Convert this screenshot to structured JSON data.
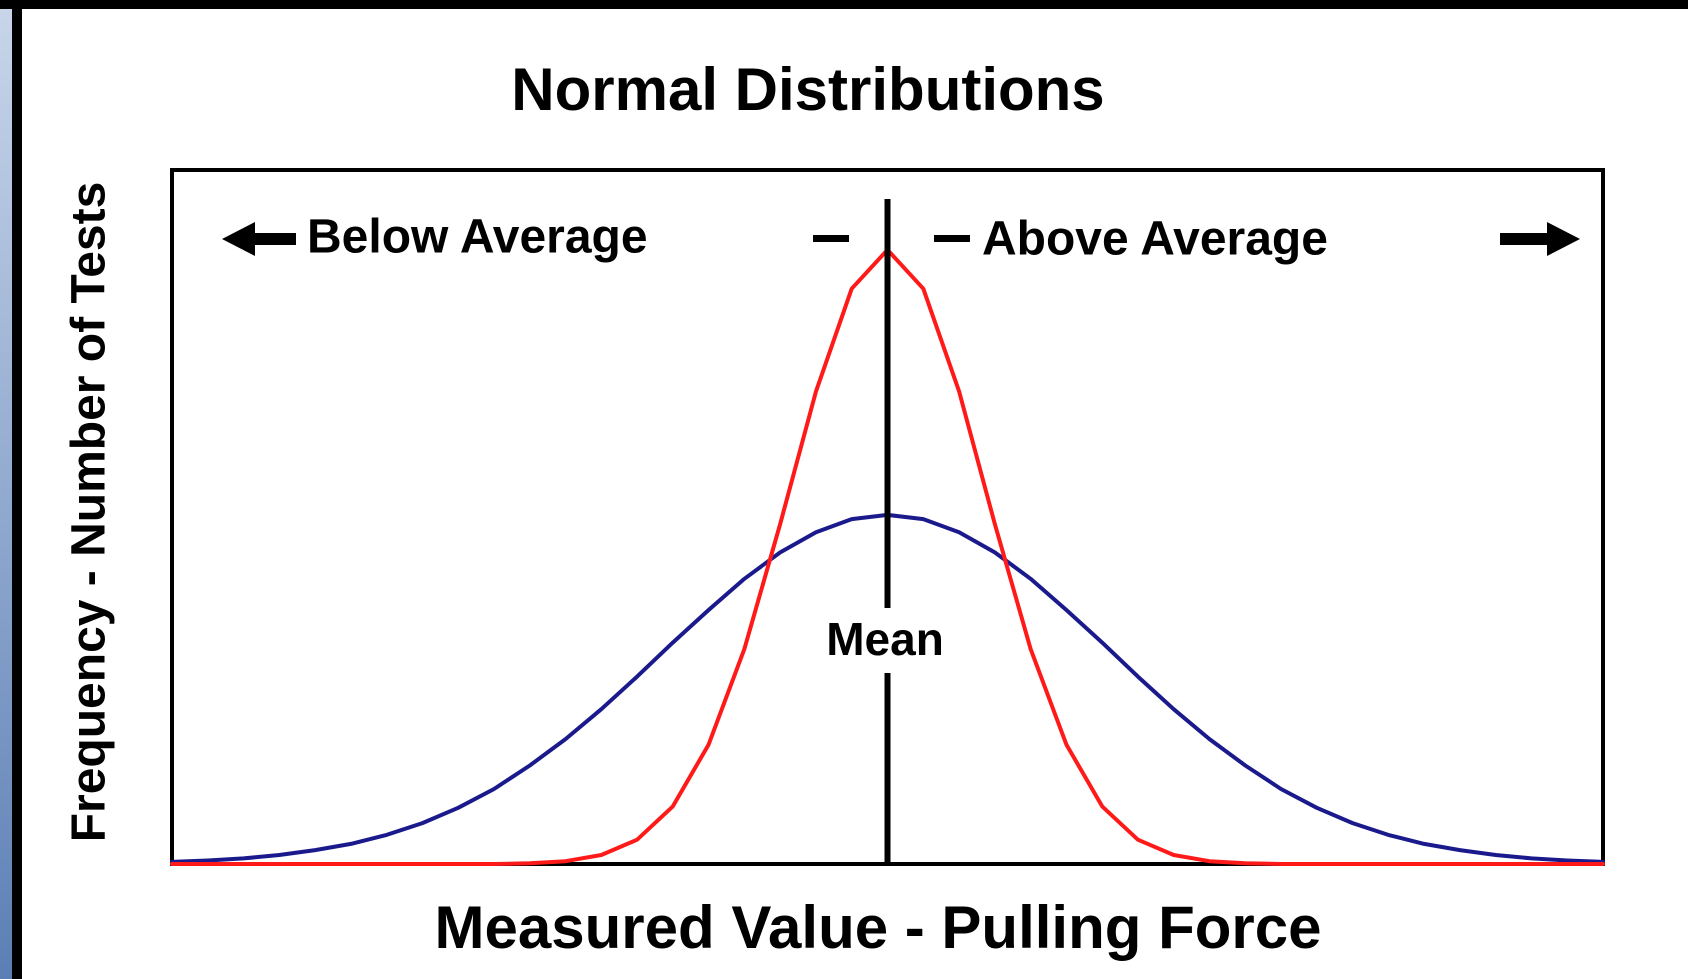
{
  "chart_data": {
    "type": "line",
    "title": "Normal Distributions",
    "x_label": "Measured Value - Pulling Force",
    "y_label": "Frequency - Number of Tests",
    "annotations": [
      "Below Average",
      "Above Average",
      "Mean"
    ],
    "x": [
      0,
      2.5,
      5,
      7.5,
      10,
      12.5,
      15,
      17.5,
      20,
      22.5,
      25,
      27.5,
      30,
      32.5,
      35,
      37.5,
      40,
      42.5,
      45,
      47.5,
      50,
      52.5,
      55,
      57.5,
      60,
      62.5,
      65,
      67.5,
      70,
      72.5,
      75,
      77.5,
      80,
      82.5,
      85,
      87.5,
      90,
      92.5,
      95,
      97.5,
      100
    ],
    "series": [
      {
        "color": "#1a1a8c",
        "values": [
          0.3,
          0.5,
          0.8,
          1.3,
          2.0,
          2.9,
          4.2,
          5.9,
          8.1,
          10.8,
          14.2,
          18.0,
          22.3,
          27.0,
          31.9,
          36.6,
          41.1,
          44.9,
          47.8,
          49.7,
          50.3,
          49.7,
          47.8,
          44.9,
          41.1,
          36.6,
          31.9,
          27.0,
          22.3,
          18.0,
          14.2,
          10.8,
          8.1,
          5.9,
          4.2,
          2.9,
          2.0,
          1.3,
          0.8,
          0.5,
          0.3
        ]
      },
      {
        "color": "#ff1a1a",
        "values": [
          0,
          0,
          0,
          0,
          0,
          0,
          0,
          0,
          0,
          0,
          0.1,
          0.4,
          1.3,
          3.5,
          8.3,
          17.2,
          31.0,
          49.0,
          68.1,
          82.9,
          88.5,
          82.9,
          68.1,
          49.0,
          31.0,
          17.2,
          8.3,
          3.5,
          1.3,
          0.4,
          0.1,
          0,
          0,
          0,
          0,
          0,
          0,
          0,
          0,
          0,
          0
        ]
      }
    ],
    "xlim": [
      0,
      100
    ],
    "ylim": [
      0,
      100
    ]
  }
}
